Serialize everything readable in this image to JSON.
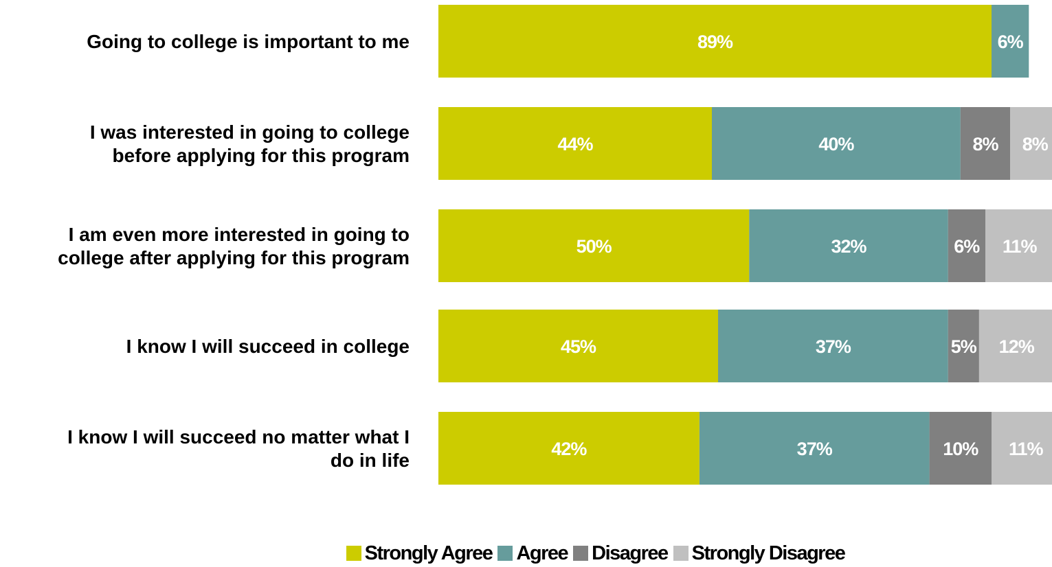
{
  "chart_data": {
    "type": "bar",
    "orientation": "horizontal",
    "stacked": true,
    "categories": [
      [
        "Going to college is important to me"
      ],
      [
        "I was interested in going to college",
        "before applying for this program"
      ],
      [
        "I am even more interested in going to",
        "college after applying for this program"
      ],
      [
        "I know I will succeed in college"
      ],
      [
        "I know I will succeed no matter what I",
        "do in life"
      ]
    ],
    "series": [
      {
        "name": "Strongly Agree",
        "color": "#cccc00",
        "values": [
          89,
          44,
          50,
          45,
          42
        ],
        "labels": [
          "89%",
          "44%",
          "50%",
          "45%",
          "42%"
        ]
      },
      {
        "name": "Agree",
        "color": "#669c9c",
        "values": [
          6,
          40,
          32,
          37,
          37
        ],
        "labels": [
          "6%",
          "40%",
          "32%",
          "37%",
          "37%"
        ]
      },
      {
        "name": "Disagree",
        "color": "#808080",
        "values": [
          0,
          8,
          6,
          5,
          10
        ],
        "labels": [
          "",
          "8%",
          "6%",
          "5%",
          "10%"
        ]
      },
      {
        "name": "Strongly Disagree",
        "color": "#c0c0c0",
        "values": [
          0,
          8,
          11,
          12,
          11
        ],
        "labels": [
          "",
          "8%",
          "11%",
          "12%",
          "11%"
        ]
      }
    ],
    "xlim": [
      0,
      100
    ],
    "grid": false,
    "legend_position": "bottom"
  }
}
